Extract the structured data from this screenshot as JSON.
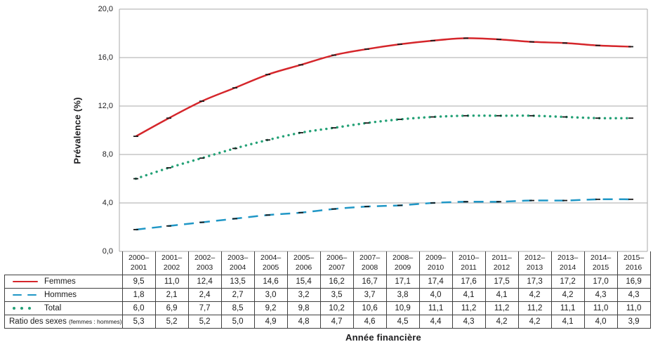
{
  "chart_data": {
    "type": "line",
    "title": "",
    "xlabel": "Année financière",
    "ylabel": "Prévalence (%)",
    "ylim": [
      0,
      20
    ],
    "grid": true,
    "y_ticks": [
      {
        "value": 0,
        "label": "0,0"
      },
      {
        "value": 4,
        "label": "4,0"
      },
      {
        "value": 8,
        "label": "8,0"
      },
      {
        "value": 12,
        "label": "12,0"
      },
      {
        "value": 16,
        "label": "16,0"
      },
      {
        "value": 20,
        "label": "20,0"
      }
    ],
    "categories": [
      "2000–2001",
      "2001–2002",
      "2002–2003",
      "2003–2004",
      "2004–2005",
      "2005–2006",
      "2006–2007",
      "2007–2008",
      "2008–2009",
      "2009–2010",
      "2010–2011",
      "2011–2012",
      "2012–2013",
      "2013–2014",
      "2014–2015",
      "2015–2016"
    ],
    "series": [
      {
        "name": "Femmes",
        "key": "femmes",
        "color": "#d5262b",
        "line_style": "solid",
        "values": [
          9.5,
          11.0,
          12.4,
          13.5,
          14.6,
          15.4,
          16.2,
          16.7,
          17.1,
          17.4,
          17.6,
          17.5,
          17.3,
          17.2,
          17.0,
          16.9
        ]
      },
      {
        "name": "Hommes",
        "key": "hommes",
        "color": "#2097c6",
        "line_style": "dashed",
        "values": [
          1.8,
          2.1,
          2.4,
          2.7,
          3.0,
          3.2,
          3.5,
          3.7,
          3.8,
          4.0,
          4.1,
          4.1,
          4.2,
          4.2,
          4.3,
          4.3
        ]
      },
      {
        "name": "Total",
        "key": "total",
        "color": "#23a176",
        "line_style": "dotted",
        "values": [
          6.0,
          6.9,
          7.7,
          8.5,
          9.2,
          9.8,
          10.2,
          10.6,
          10.9,
          11.1,
          11.2,
          11.2,
          11.2,
          11.1,
          11.0,
          11.0
        ]
      }
    ],
    "marker": {
      "shape": "dash",
      "color": "#1a1a1a"
    },
    "decimal_separator": ",",
    "colors": {
      "grid": "#a9a9a9",
      "plot_border": "#a9a9a9",
      "table_border": "#3f3f3f"
    },
    "legend_position": "table-left-column"
  },
  "table": {
    "rows": [
      {
        "key": "femmes",
        "label": "Femmes",
        "legend_style": "solid",
        "series_index": 0
      },
      {
        "key": "hommes",
        "label": "Hommes",
        "legend_style": "dashed",
        "series_index": 1
      },
      {
        "key": "total",
        "label": "Total",
        "legend_style": "dotted",
        "series_index": 2
      },
      {
        "key": "ratio",
        "label": "Ratio des sexes",
        "label_suffix": "(femmes : hommes)",
        "values": [
          5.3,
          5.2,
          5.2,
          5.0,
          4.9,
          4.8,
          4.7,
          4.6,
          4.5,
          4.4,
          4.3,
          4.2,
          4.2,
          4.1,
          4.0,
          3.9
        ]
      }
    ]
  }
}
